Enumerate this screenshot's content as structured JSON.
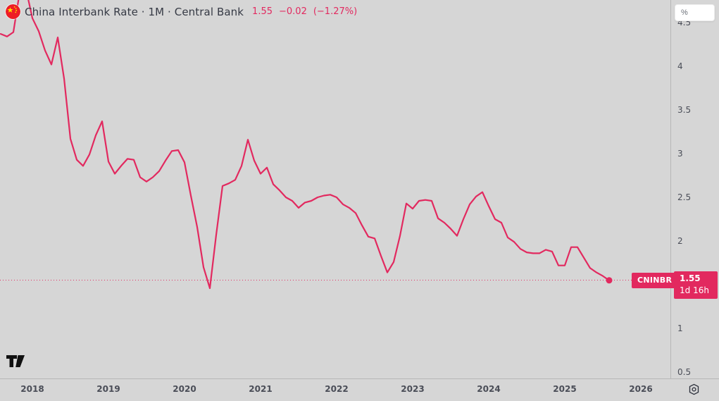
{
  "header": {
    "title": "China Interbank Rate · 1M · Central Bank",
    "last_value": "1.55",
    "change": "−0.02",
    "change_pct": "(−1.27%)",
    "flag_icon": "china-flag"
  },
  "price_axis": {
    "unit_button_label": "%",
    "price_flag": {
      "symbol": "CNINBR",
      "price": "1.55",
      "countdown": "1d 16h"
    }
  },
  "logo": "tradingview",
  "colors": {
    "accent": "#e2295f",
    "background": "#d6d6d6",
    "text": "#363a45",
    "axis_text": "#4a4d57",
    "label_text": "#ffffff"
  },
  "chart_data": {
    "type": "line",
    "title": "China Interbank Rate · 1M · Central Bank",
    "unit": "%",
    "interval": "1M",
    "x_start": "2017-08",
    "x_step_months": 1,
    "x_tick_labels": [
      "2018",
      "2019",
      "2020",
      "2021",
      "2022",
      "2023",
      "2024",
      "2025",
      "2026"
    ],
    "y_ticks": [
      {
        "label": "4.5",
        "value": 4.5
      },
      {
        "label": "4",
        "value": 4
      },
      {
        "label": "3.5",
        "value": 3.5
      },
      {
        "label": "3",
        "value": 3
      },
      {
        "label": "2.5",
        "value": 2.5
      },
      {
        "label": "2",
        "value": 2
      },
      {
        "label": "1",
        "value": 1
      },
      {
        "label": "0.5",
        "value": 0.5
      }
    ],
    "ylim": [
      0.35,
      4.76
    ],
    "grid": false,
    "last_price": 1.55,
    "last_price_line": "dotted",
    "values": [
      4.37,
      4.34,
      4.39,
      4.85,
      4.88,
      4.55,
      4.4,
      4.18,
      4.02,
      4.33,
      3.86,
      3.17,
      2.93,
      2.86,
      2.99,
      3.21,
      3.37,
      2.91,
      2.77,
      2.86,
      2.94,
      2.93,
      2.73,
      2.68,
      2.73,
      2.8,
      2.92,
      3.03,
      3.04,
      2.9,
      2.52,
      2.16,
      1.7,
      1.46,
      2.07,
      2.63,
      2.66,
      2.7,
      2.86,
      3.16,
      2.92,
      2.77,
      2.84,
      2.65,
      2.58,
      2.5,
      2.46,
      2.38,
      2.44,
      2.46,
      2.5,
      2.52,
      2.53,
      2.5,
      2.42,
      2.38,
      2.32,
      2.18,
      2.05,
      2.03,
      1.83,
      1.64,
      1.76,
      2.06,
      2.43,
      2.37,
      2.46,
      2.47,
      2.46,
      2.26,
      2.21,
      2.14,
      2.06,
      2.25,
      2.42,
      2.51,
      2.56,
      2.4,
      2.25,
      2.21,
      2.04,
      1.99,
      1.91,
      1.87,
      1.86,
      1.86,
      1.9,
      1.88,
      1.72,
      1.72,
      1.93,
      1.93,
      1.81,
      1.69,
      1.64,
      1.6,
      1.55
    ]
  }
}
